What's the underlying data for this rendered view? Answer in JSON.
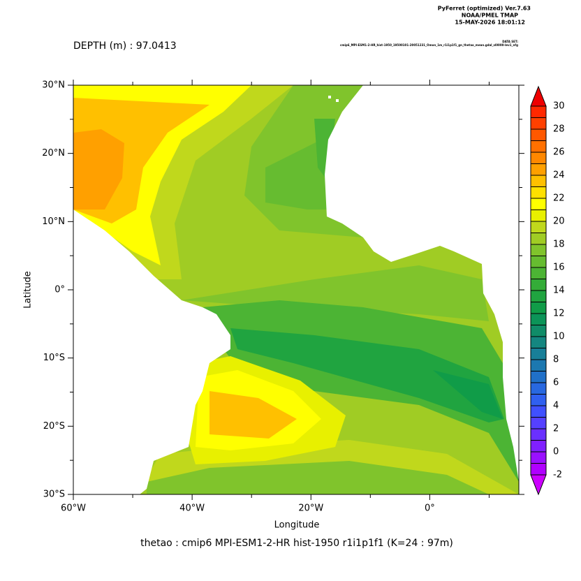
{
  "header": {
    "program": "PyFerret (optimized) Ver.7.63",
    "org": "NOAA/PMEL TMAP",
    "date": "15-MAY-2026 18:01:12",
    "dataset_label": "DATA SET:",
    "dataset": "cmip6_MPI-ESM1-2-HR_hist-1950_19500101-20051231_Omon_1m_r1i1p1f1_gn_thetao_mean.gdal_sl0000-lev1_nfg"
  },
  "chart_data": {
    "type": "contour",
    "title": "DEPTH (m) : 97.0413",
    "xlabel": "Longitude",
    "ylabel": "Latitude",
    "caption": "thetao : cmip6 MPI-ESM1-2-HR hist-1950 r1i1p1f1   (K=24 : 97m)",
    "xlim": [
      -60,
      15
    ],
    "ylim": [
      -30,
      30
    ],
    "xticks": [
      {
        "value": -60,
        "label": "60°W"
      },
      {
        "value": -40,
        "label": "40°W"
      },
      {
        "value": -20,
        "label": "20°W"
      },
      {
        "value": 0,
        "label": "0°"
      }
    ],
    "yticks": [
      {
        "value": -30,
        "label": "30°S"
      },
      {
        "value": -20,
        "label": "20°S"
      },
      {
        "value": -10,
        "label": "10°S"
      },
      {
        "value": 0,
        "label": "0°"
      },
      {
        "value": 10,
        "label": "10°N"
      },
      {
        "value": 20,
        "label": "20°N"
      },
      {
        "value": 30,
        "label": "30°N"
      }
    ],
    "colorbar": {
      "levels": [
        -2,
        -1,
        0,
        1,
        2,
        3,
        4,
        5,
        6,
        7,
        8,
        9,
        10,
        11,
        12,
        13,
        14,
        15,
        16,
        17,
        18,
        19,
        20,
        21,
        22,
        23,
        24,
        25,
        26,
        27,
        28,
        29,
        30
      ],
      "ticks": [
        -2,
        0,
        2,
        4,
        6,
        8,
        10,
        12,
        14,
        16,
        18,
        20,
        22,
        24,
        26,
        28,
        30
      ],
      "colors": [
        "#cc00ff",
        "#b000ff",
        "#9a10ff",
        "#8020ff",
        "#6a30ff",
        "#5540ff",
        "#4050ff",
        "#3060f0",
        "#2868e0",
        "#2070c8",
        "#1c78b0",
        "#187f98",
        "#148680",
        "#108c68",
        "#0c9458",
        "#109c48",
        "#20a440",
        "#34ac38",
        "#4cb434",
        "#66bc30",
        "#80c42c",
        "#a0cc24",
        "#c0d81c",
        "#e8f000",
        "#ffff00",
        "#ffe000",
        "#ffc000",
        "#ffa000",
        "#ff8800",
        "#ff7000",
        "#ff5800",
        "#ff4000",
        "#ff2800",
        "#ee0000"
      ]
    }
  }
}
